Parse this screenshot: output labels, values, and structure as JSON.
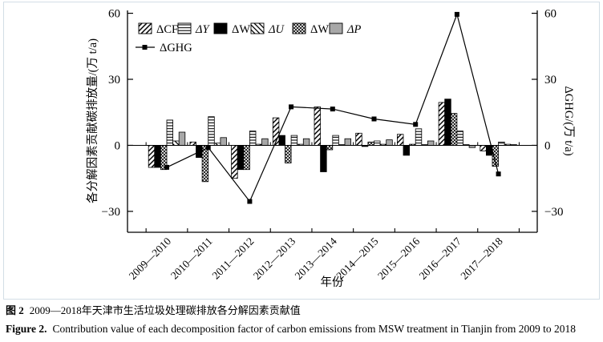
{
  "chart_data": {
    "type": "bar",
    "title": "",
    "categories": [
      "2009—2010",
      "2010—2011",
      "2011—2012",
      "2012—2013",
      "2013—2014",
      "2014—2015",
      "2015—2016",
      "2016—2017",
      "2017—2018"
    ],
    "series": [
      {
        "name": "ΔCF",
        "pattern": "diag-forward",
        "italic": false,
        "values": [
          -10,
          1.5,
          -15,
          12.5,
          17.5,
          5.5,
          5,
          19.5,
          -2.5
        ]
      },
      {
        "name": "ΔY",
        "pattern": "hlines",
        "italic": true,
        "values": [
          11.5,
          13,
          6.5,
          4.5,
          4.5,
          2,
          7.5,
          6.5,
          1.5
        ]
      },
      {
        "name": "ΔWS",
        "pattern": "solid-black",
        "italic": false,
        "values": [
          -10,
          -5.5,
          -11,
          4.5,
          -12,
          -0.5,
          -4.5,
          21,
          -4.5
        ]
      },
      {
        "name": "ΔU",
        "pattern": "diag-back",
        "italic": true,
        "values": [
          2,
          1,
          0.5,
          0.5,
          0.3,
          0.5,
          0.3,
          0.3,
          0.5
        ]
      },
      {
        "name": "ΔWI",
        "pattern": "crosshatch",
        "italic": false,
        "values": [
          -11,
          -16.5,
          -11,
          -8,
          -2,
          1.5,
          0.5,
          14.5,
          -9.5
        ]
      },
      {
        "name": "ΔP",
        "pattern": "solid-gray",
        "italic": true,
        "values": [
          6,
          3.5,
          3,
          3,
          3,
          2.5,
          2,
          -1,
          0.3
        ]
      }
    ],
    "column_order": [
      "ΔCF",
      "ΔWS",
      "ΔWI",
      "ΔY",
      "ΔU",
      "ΔP"
    ],
    "line_series": {
      "name": "ΔGHG",
      "marker": "filled-square",
      "values": [
        -10,
        -1,
        -25.5,
        17.5,
        16.5,
        12,
        9.5,
        59.5,
        -13
      ]
    },
    "left_axis": {
      "label": "各分解因素贡献碳排放量/(万 t/a)",
      "ticks": [
        60,
        30,
        0,
        -30
      ],
      "range": [
        -39.5,
        61.3
      ]
    },
    "right_axis": {
      "label": "ΔGHG/(万 t/a)",
      "ticks": [
        60,
        30,
        0,
        -30
      ]
    },
    "x_axis": {
      "label": "年份"
    },
    "legend_position": "top-left-inside",
    "grid": false,
    "colors": {
      "bar_stroke": "#000000",
      "gray_fill": "#a8a8a8",
      "line": "#000000",
      "background": "#ffffff"
    }
  },
  "captions": {
    "zh_prefix": "图 2",
    "zh_text": "2009—2018年天津市生活垃圾处理碳排放各分解因素贡献值",
    "en_prefix": "Figure 2.",
    "en_text": "Contribution value of each decomposition factor of carbon emissions from MSW treatment in Tianjin from 2009 to 2018"
  }
}
